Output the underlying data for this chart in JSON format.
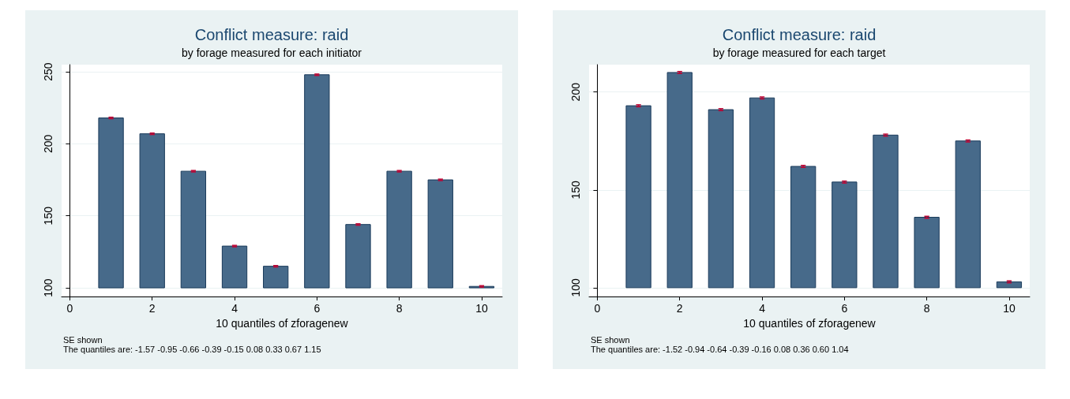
{
  "chart_data": [
    {
      "type": "bar",
      "title": "Conflict measure: raid",
      "subtitle": "by forage measured for each initiator",
      "xlabel": "10 quantiles of zforagenew",
      "x": [
        1,
        2,
        3,
        4,
        5,
        6,
        7,
        8,
        9,
        10
      ],
      "base": [
        100,
        100,
        100,
        100,
        100,
        100,
        100,
        100,
        100,
        100
      ],
      "values": [
        118,
        107,
        81,
        29,
        15,
        148,
        44,
        81,
        75,
        1
      ],
      "errors": [
        0.5,
        0.5,
        0.5,
        0.5,
        0.5,
        0.5,
        0.5,
        0.5,
        0.5,
        0.5
      ],
      "color": "#476a8a",
      "xlim": [
        -0.2,
        10.5
      ],
      "xticks": [
        0,
        2,
        4,
        6,
        8,
        10
      ],
      "ylim": [
        94,
        255
      ],
      "yticks": [
        100,
        150,
        200,
        250
      ],
      "grid": "y",
      "annotations": [
        "SE shown",
        "The quantiles are: -1.57 -0.95 -0.66 -0.39 -0.15 0.08 0.33 0.67 1.15"
      ]
    },
    {
      "type": "bar",
      "title": "Conflict measure: raid",
      "subtitle": "by forage measured for each target",
      "xlabel": "10 quantiles of zforagenew",
      "x": [
        1,
        2,
        3,
        4,
        5,
        6,
        7,
        8,
        9,
        10
      ],
      "base": [
        100,
        100,
        100,
        100,
        100,
        100,
        100,
        100,
        100,
        100
      ],
      "values": [
        93,
        110,
        91,
        97,
        62,
        54,
        78,
        36,
        75,
        3
      ],
      "errors": [
        0.5,
        0.5,
        0.5,
        0.5,
        0.5,
        0.5,
        0.5,
        0.5,
        0.5,
        0.5
      ],
      "color": "#476a8a",
      "xlim": [
        -0.2,
        10.5
      ],
      "xticks": [
        0,
        2,
        4,
        6,
        8,
        10
      ],
      "ylim": [
        95.5,
        214
      ],
      "yticks": [
        100,
        150,
        200
      ],
      "grid": "y",
      "annotations": [
        "SE shown",
        "The quantiles are: -1.52 -0.94 -0.64 -0.39 -0.16 0.08 0.36 0.60 1.04"
      ]
    }
  ]
}
